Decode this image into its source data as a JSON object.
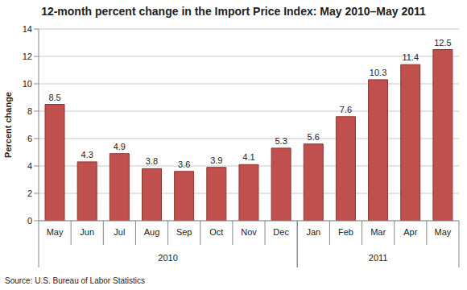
{
  "chart_data": {
    "type": "bar",
    "title": "12-month percent change in the Import Price Index: May 2010–May 2011",
    "y_label": "Percent change",
    "categories": [
      "May",
      "Jun",
      "Jul",
      "Aug",
      "Sep",
      "Oct",
      "Nov",
      "Dec",
      "Jan",
      "Feb",
      "Mar",
      "Apr",
      "May"
    ],
    "category_groups": [
      "2010",
      "2010",
      "2010",
      "2010",
      "2010",
      "2010",
      "2010",
      "2010",
      "2011",
      "2011",
      "2011",
      "2011",
      "2011"
    ],
    "values": [
      8.5,
      4.3,
      4.9,
      3.8,
      3.6,
      3.9,
      4.1,
      5.3,
      5.6,
      7.6,
      10.3,
      11.4,
      12.5
    ],
    "color": "#c0504d",
    "ylim": [
      0,
      14
    ],
    "yticks": [
      0,
      2,
      4,
      6,
      8,
      10,
      12,
      14
    ],
    "grid": true,
    "data_labels": true,
    "source": "Source: U.S. Bureau of Labor Statistics"
  }
}
